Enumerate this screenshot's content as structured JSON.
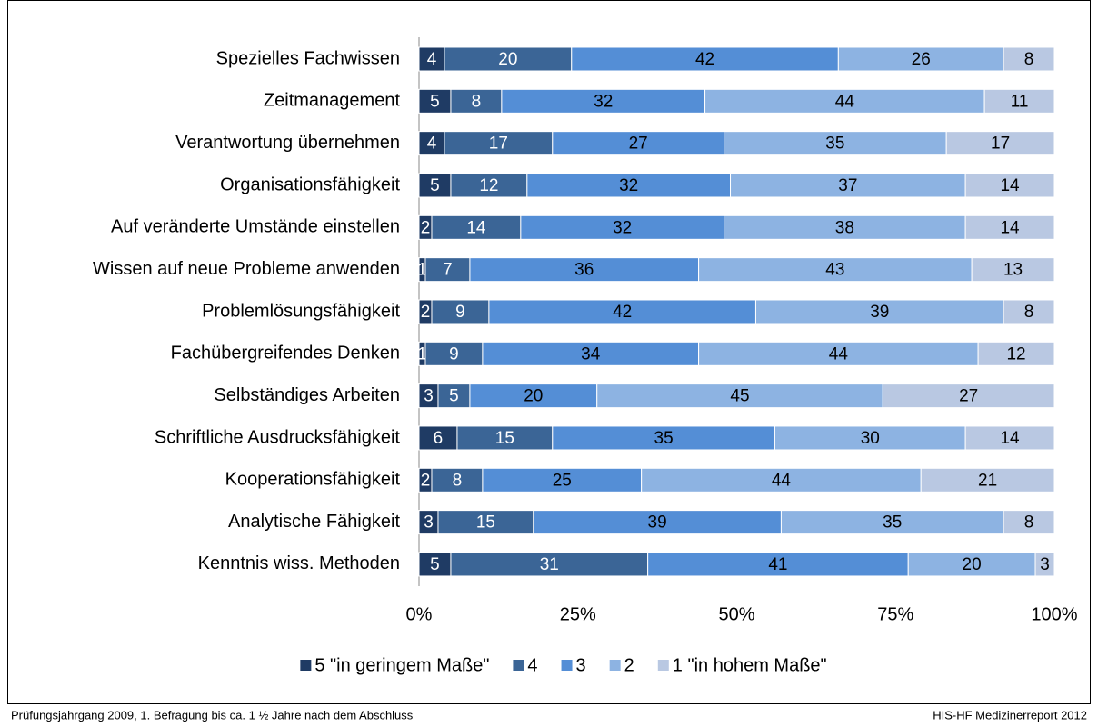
{
  "chart_data": {
    "type": "bar",
    "orientation": "horizontal",
    "stacked": true,
    "categories": [
      "Spezielles Fachwissen",
      "Zeitmanagement",
      "Verantwortung übernehmen",
      "Organisationsfähigkeit",
      "Auf veränderte Umstände einstellen",
      "Wissen auf neue Probleme anwenden",
      "Problemlösungsfähigkeit",
      "Fachübergreifendes Denken",
      "Selbständiges Arbeiten",
      "Schriftliche Ausdrucksfähigkeit",
      "Kooperationsfähigkeit",
      "Analytische Fähigkeit",
      "Kenntnis wiss. Methoden"
    ],
    "series": [
      {
        "name": "5 \"in geringem Maße\"",
        "color": "#1f3b64",
        "label_color": "#ffffff",
        "values": [
          4,
          5,
          4,
          5,
          2,
          1,
          2,
          1,
          3,
          6,
          2,
          3,
          5
        ]
      },
      {
        "name": "4",
        "color": "#3b6596",
        "label_color": "#ffffff",
        "values": [
          20,
          8,
          17,
          12,
          14,
          7,
          9,
          9,
          5,
          15,
          8,
          15,
          31
        ]
      },
      {
        "name": "3",
        "color": "#548ed6",
        "label_color": "#000000",
        "values": [
          42,
          32,
          27,
          32,
          32,
          36,
          42,
          34,
          20,
          35,
          25,
          39,
          41
        ]
      },
      {
        "name": "2",
        "color": "#8db3e2",
        "label_color": "#000000",
        "values": [
          26,
          44,
          35,
          37,
          38,
          43,
          39,
          44,
          45,
          30,
          44,
          35,
          20
        ]
      },
      {
        "name": "1 \"in hohem Maße\"",
        "color": "#b9c8e2",
        "label_color": "#000000",
        "values": [
          8,
          11,
          17,
          14,
          14,
          13,
          8,
          12,
          27,
          14,
          21,
          8,
          3
        ]
      }
    ],
    "xlim": [
      0,
      100
    ],
    "xticks": [
      {
        "value": 0,
        "label": "0%"
      },
      {
        "value": 25,
        "label": "25%"
      },
      {
        "value": 50,
        "label": "50%"
      },
      {
        "value": 75,
        "label": "75%"
      },
      {
        "value": 100,
        "label": "100%"
      }
    ],
    "legend": "bottom"
  },
  "footer": {
    "left": "Prüfungsjahrgang 2009, 1. Befragung bis ca. 1 ½ Jahre nach dem Abschluss",
    "right": "HIS-HF Medizinerreport 2012"
  }
}
